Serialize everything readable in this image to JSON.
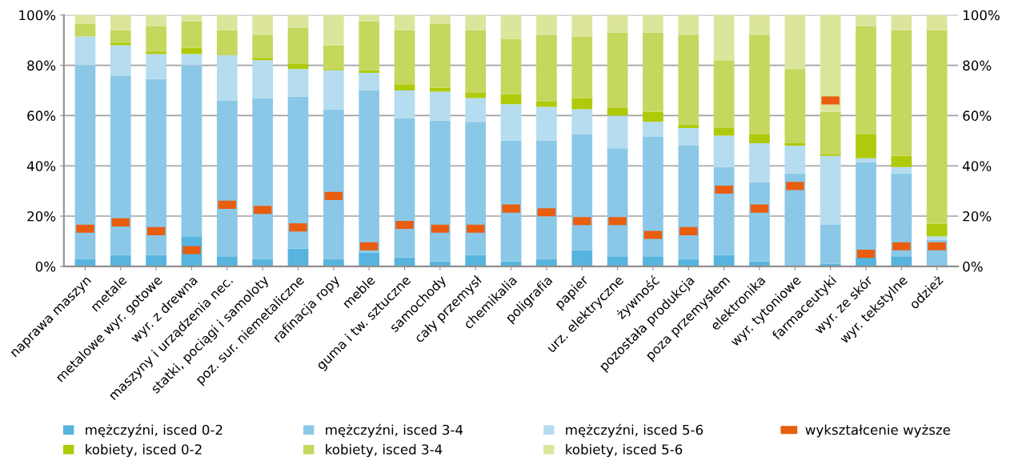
{
  "chart_data": {
    "type": "bar",
    "stacked": true,
    "categories": [
      "naprawa maszyn",
      "metale",
      "metalowe wyr. gotowe",
      "wyr. z drewna",
      "maszyny i urządzenia nec.",
      "statki, pociągi i samoloty",
      "poz. sur. niemetaliczne",
      "rafinacja ropy",
      "meble",
      "guma i tw. sztuczne",
      "samochody",
      "cały przemysł",
      "chemikalia",
      "poligrafia",
      "papier",
      "urz. elektryczne",
      "żywność",
      "pozostała produkcja",
      "poza przemysłem",
      "elektronika",
      "wyr. tytoniowe",
      "farmaceutyki",
      "wyr. ze skór",
      "wyr. tekstylne",
      "odzież"
    ],
    "series": [
      {
        "name": "mężczyźni, isced 0-2",
        "color": "#56b4de",
        "values": [
          3,
          4.5,
          4.5,
          12,
          4,
          3,
          7,
          3,
          5.5,
          3.5,
          2,
          4.5,
          2,
          3,
          6.5,
          4,
          4,
          3,
          4.5,
          2,
          0,
          1,
          3.5,
          4,
          0
        ]
      },
      {
        "name": "mężczyźni, isced 3-4",
        "color": "#8bc8e7",
        "values": [
          77,
          71.5,
          70,
          68,
          62,
          64,
          60.5,
          59.5,
          64.5,
          55.5,
          56,
          53,
          48,
          47,
          46,
          43,
          47.5,
          45,
          35,
          31.5,
          37,
          15.5,
          38,
          33,
          10.5
        ]
      },
      {
        "name": "mężczyźni, isced 5-6",
        "color": "#b6dcf0",
        "values": [
          11.5,
          12,
          10,
          4.5,
          18,
          15,
          11,
          15.5,
          7,
          11,
          11.5,
          9.5,
          14.5,
          13.5,
          10,
          13,
          6,
          7,
          12.5,
          15.5,
          11,
          27.5,
          1.5,
          2.5,
          1.5
        ]
      },
      {
        "name": "kobiety, isced 0-2",
        "color": "#afca0b",
        "values": [
          0,
          1,
          1,
          2.5,
          0,
          1,
          2,
          0.5,
          1,
          2.5,
          1.5,
          2,
          4,
          2,
          4.5,
          3,
          4,
          1.5,
          3,
          3.5,
          1,
          0.5,
          9.5,
          4.5,
          5
        ]
      },
      {
        "name": "kobiety, isced 3-4",
        "color": "#c5d75d",
        "values": [
          5,
          5,
          10,
          10.5,
          10,
          9,
          14.5,
          9.5,
          19.5,
          21.5,
          25.5,
          25,
          22,
          26.5,
          24.5,
          30,
          31.5,
          35.5,
          27,
          39.5,
          29.5,
          17,
          43,
          50,
          77
        ]
      },
      {
        "name": "kobiety, isced 5-6",
        "color": "#dce59c",
        "values": [
          3.5,
          6,
          4.5,
          2.5,
          6,
          8,
          5,
          12,
          2.5,
          6,
          3.5,
          6,
          9.5,
          8,
          8.5,
          7,
          7,
          8,
          18,
          8,
          21.5,
          38.5,
          4.5,
          6,
          6
        ]
      },
      {
        "name": "wykształcenie wyższe",
        "type": "scatter",
        "color": "#e95d0f",
        "values": [
          15,
          17.5,
          14,
          6.5,
          24.5,
          22.5,
          15.5,
          28,
          8,
          16.5,
          15,
          15,
          23,
          21.5,
          18,
          18,
          12.5,
          14,
          30.5,
          23,
          32,
          66,
          5,
          8,
          8
        ]
      }
    ],
    "ylim": [
      0,
      100
    ],
    "yticks": [
      {
        "value": 0,
        "label": "0%"
      },
      {
        "value": 20,
        "label": "20%"
      },
      {
        "value": 40,
        "label": "40%"
      },
      {
        "value": 60,
        "label": "60%"
      },
      {
        "value": 80,
        "label": "80%"
      },
      {
        "value": 100,
        "label": "100%"
      }
    ],
    "y2lim": [
      0,
      100
    ],
    "y2ticks": [
      {
        "value": 0,
        "label": "0%"
      },
      {
        "value": 20,
        "label": "20%"
      },
      {
        "value": 40,
        "label": "40%"
      },
      {
        "value": 60,
        "label": "60%"
      },
      {
        "value": 80,
        "label": "80%"
      },
      {
        "value": 100,
        "label": "100%"
      }
    ],
    "grid": "y",
    "legend": "bottom"
  }
}
